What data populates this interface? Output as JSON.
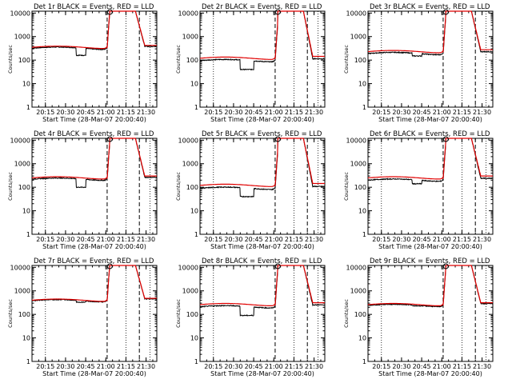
{
  "figure": {
    "panel_title_suffix": " BLACK = Events, RED = LLD",
    "ylabel": "Counts/sec",
    "xlabel": "Start Time (28-Mar-07 20:00:40)"
  },
  "colors": {
    "events": "#000000",
    "lld": "#e00000",
    "background": "#ffffff"
  },
  "chart_data": [
    {
      "type": "line",
      "detector": "Det 1r",
      "title": "Det 1r BLACK = Events, RED = LLD",
      "xlabel": "Start Time (28-Mar-07 20:00:40)",
      "ylabel": "Counts/sec",
      "yscale": "log",
      "ylim": [
        1,
        12000
      ],
      "xlim": [
        "20:05",
        "21:38"
      ],
      "xticks": [
        "20:15",
        "20:30",
        "20:45",
        "21:00",
        "21:15",
        "21:30"
      ],
      "yticks": [
        "1",
        "10",
        "100",
        "1000",
        "10000"
      ],
      "markers": {
        "dotted_times": [
          "20:15",
          "21:15",
          "21:33"
        ],
        "dashed_times": [
          "21:01",
          "21:25"
        ]
      },
      "series": [
        {
          "name": "Events",
          "color": "black",
          "baseline": 320,
          "dip": {
            "from": "20:38",
            "to": "20:45",
            "value": 160
          }
        },
        {
          "name": "LLD",
          "color": "red",
          "baseline": 350
        }
      ]
    },
    {
      "type": "line",
      "detector": "Det 2r",
      "title": "Det 2r BLACK = Events, RED = LLD",
      "xlabel": "Start Time (28-Mar-07 20:00:40)",
      "ylabel": "Counts/sec",
      "yscale": "log",
      "ylim": [
        1,
        12000
      ],
      "xlim": [
        "20:05",
        "21:38"
      ],
      "xticks": [
        "20:15",
        "20:30",
        "20:45",
        "21:00",
        "21:15",
        "21:30"
      ],
      "yticks": [
        "1",
        "10",
        "100",
        "1000",
        "10000"
      ],
      "markers": {
        "dotted_times": [
          "20:15",
          "21:15",
          "21:33"
        ],
        "dashed_times": [
          "21:01",
          "21:25"
        ]
      },
      "series": [
        {
          "name": "Events",
          "color": "black",
          "baseline": 95,
          "dip": {
            "from": "20:35",
            "to": "20:45",
            "value": 40
          }
        },
        {
          "name": "LLD",
          "color": "red",
          "baseline": 120
        }
      ]
    },
    {
      "type": "line",
      "detector": "Det 3r",
      "title": "Det 3r BLACK = Events, RED = LLD",
      "xlabel": "Start Time (28-Mar-07 20:00:40)",
      "ylabel": "Counts/sec",
      "yscale": "log",
      "ylim": [
        1,
        12000
      ],
      "xlim": [
        "20:05",
        "21:38"
      ],
      "xticks": [
        "20:15",
        "20:30",
        "20:45",
        "21:00",
        "21:15",
        "21:30"
      ],
      "yticks": [
        "1",
        "10",
        "100",
        "1000",
        "10000"
      ],
      "markers": {
        "dotted_times": [
          "20:15",
          "21:15",
          "21:33"
        ],
        "dashed_times": [
          "21:01",
          "21:25"
        ]
      },
      "series": [
        {
          "name": "Events",
          "color": "black",
          "baseline": 190,
          "dip": {
            "from": "20:38",
            "to": "20:45",
            "value": 150
          }
        },
        {
          "name": "LLD",
          "color": "red",
          "baseline": 230
        }
      ]
    },
    {
      "type": "line",
      "detector": "Det 4r",
      "title": "Det 4r BLACK = Events, RED = LLD",
      "xlabel": "Start Time (28-Mar-07 20:00:40)",
      "ylabel": "Counts/sec",
      "yscale": "log",
      "ylim": [
        1,
        12000
      ],
      "xlim": [
        "20:05",
        "21:38"
      ],
      "xticks": [
        "20:15",
        "20:30",
        "20:45",
        "21:00",
        "21:15",
        "21:30"
      ],
      "yticks": [
        "1",
        "10",
        "100",
        "1000",
        "10000"
      ],
      "markers": {
        "dotted_times": [
          "20:15",
          "21:15",
          "21:33"
        ],
        "dashed_times": [
          "21:01",
          "21:25"
        ]
      },
      "series": [
        {
          "name": "Events",
          "color": "black",
          "baseline": 220,
          "dip": {
            "from": "20:38",
            "to": "20:45",
            "value": 100
          }
        },
        {
          "name": "LLD",
          "color": "red",
          "baseline": 250
        }
      ]
    },
    {
      "type": "line",
      "detector": "Det 5r",
      "title": "Det 5r BLACK = Events, RED = LLD",
      "xlabel": "Start Time (28-Mar-07 20:00:40)",
      "ylabel": "Counts/sec",
      "yscale": "log",
      "ylim": [
        1,
        12000
      ],
      "xlim": [
        "20:05",
        "21:38"
      ],
      "xticks": [
        "20:15",
        "20:30",
        "20:45",
        "21:00",
        "21:15",
        "21:30"
      ],
      "yticks": [
        "1",
        "10",
        "100",
        "1000",
        "10000"
      ],
      "markers": {
        "dotted_times": [
          "20:15",
          "21:15",
          "21:33"
        ],
        "dashed_times": [
          "21:01",
          "21:25"
        ]
      },
      "series": [
        {
          "name": "Events",
          "color": "black",
          "baseline": 90,
          "dip": {
            "from": "20:35",
            "to": "20:45",
            "value": 40
          }
        },
        {
          "name": "LLD",
          "color": "red",
          "baseline": 120
        }
      ]
    },
    {
      "type": "line",
      "detector": "Det 6r",
      "title": "Det 6r BLACK = Events, RED = LLD",
      "xlabel": "Start Time (28-Mar-07 20:00:40)",
      "ylabel": "Counts/sec",
      "yscale": "log",
      "ylim": [
        1,
        12000
      ],
      "xlim": [
        "20:05",
        "21:38"
      ],
      "xticks": [
        "20:15",
        "20:30",
        "20:45",
        "21:00",
        "21:15",
        "21:30"
      ],
      "yticks": [
        "1",
        "10",
        "100",
        "1000",
        "10000"
      ],
      "markers": {
        "dotted_times": [
          "20:15",
          "21:15",
          "21:33"
        ],
        "dashed_times": [
          "21:01",
          "21:25"
        ]
      },
      "series": [
        {
          "name": "Events",
          "color": "black",
          "baseline": 200,
          "dip": {
            "from": "20:38",
            "to": "20:45",
            "value": 140
          }
        },
        {
          "name": "LLD",
          "color": "red",
          "baseline": 250
        }
      ]
    },
    {
      "type": "line",
      "detector": "Det 7r",
      "title": "Det 7r BLACK = Events, RED = LLD",
      "xlabel": "Start Time (28-Mar-07 20:00:40)",
      "ylabel": "Counts/sec",
      "yscale": "log",
      "ylim": [
        1,
        12000
      ],
      "xlim": [
        "20:05",
        "21:38"
      ],
      "xticks": [
        "20:15",
        "20:30",
        "20:45",
        "21:00",
        "21:15",
        "21:30"
      ],
      "yticks": [
        "1",
        "10",
        "100",
        "1000",
        "10000"
      ],
      "markers": {
        "dotted_times": [
          "20:15",
          "21:15",
          "21:33"
        ],
        "dashed_times": [
          "21:01",
          "21:25"
        ]
      },
      "series": [
        {
          "name": "Events",
          "color": "black",
          "baseline": 380,
          "dip": {
            "from": "20:38",
            "to": "20:45",
            "value": 330
          }
        },
        {
          "name": "LLD",
          "color": "red",
          "baseline": 400
        }
      ]
    },
    {
      "type": "line",
      "detector": "Det 8r",
      "title": "Det 8r BLACK = Events, RED = LLD",
      "xlabel": "Start Time (28-Mar-07 20:00:40)",
      "ylabel": "Counts/sec",
      "yscale": "log",
      "ylim": [
        1,
        12000
      ],
      "xlim": [
        "20:05",
        "21:38"
      ],
      "xticks": [
        "20:15",
        "20:30",
        "20:45",
        "21:00",
        "21:15",
        "21:30"
      ],
      "yticks": [
        "1",
        "10",
        "100",
        "1000",
        "10000"
      ],
      "markers": {
        "dotted_times": [
          "20:15",
          "21:15",
          "21:33"
        ],
        "dashed_times": [
          "21:01",
          "21:25"
        ]
      },
      "series": [
        {
          "name": "Events",
          "color": "black",
          "baseline": 210,
          "dip": {
            "from": "20:35",
            "to": "20:45",
            "value": 90
          }
        },
        {
          "name": "LLD",
          "color": "red",
          "baseline": 260
        }
      ]
    },
    {
      "type": "line",
      "detector": "Det 9r",
      "title": "Det 9r BLACK = Events, RED = LLD",
      "xlabel": "Start Time (28-Mar-07 20:00:40)",
      "ylabel": "Counts/sec",
      "yscale": "log",
      "ylim": [
        1,
        12000
      ],
      "xlim": [
        "20:05",
        "21:38"
      ],
      "xticks": [
        "20:15",
        "20:30",
        "20:45",
        "21:00",
        "21:15",
        "21:30"
      ],
      "yticks": [
        "1",
        "10",
        "100",
        "1000",
        "10000"
      ],
      "markers": {
        "dotted_times": [
          "20:15",
          "21:15",
          "21:33"
        ],
        "dashed_times": [
          "21:01",
          "21:25"
        ]
      },
      "series": [
        {
          "name": "Events",
          "color": "black",
          "baseline": 240,
          "dip": {
            "from": "20:38",
            "to": "20:45",
            "value": 230
          }
        },
        {
          "name": "LLD",
          "color": "red",
          "baseline": 260
        }
      ]
    }
  ]
}
